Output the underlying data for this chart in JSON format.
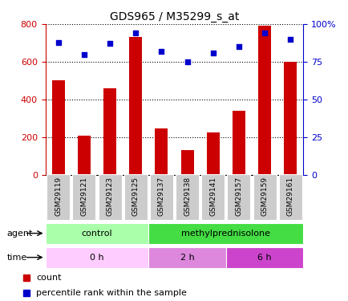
{
  "title": "GDS965 / M35299_s_at",
  "samples": [
    "GSM29119",
    "GSM29121",
    "GSM29123",
    "GSM29125",
    "GSM29137",
    "GSM29138",
    "GSM29141",
    "GSM29157",
    "GSM29159",
    "GSM29161"
  ],
  "counts": [
    500,
    205,
    460,
    730,
    245,
    130,
    225,
    340,
    790,
    600
  ],
  "percentiles": [
    88,
    80,
    87,
    94,
    82,
    75,
    81,
    85,
    94,
    90
  ],
  "ylim_left": [
    0,
    800
  ],
  "ylim_right": [
    0,
    100
  ],
  "yticks_left": [
    0,
    200,
    400,
    600,
    800
  ],
  "yticks_right": [
    0,
    25,
    50,
    75,
    100
  ],
  "bar_color": "#cc0000",
  "dot_color": "#0000cc",
  "agent_labels": [
    {
      "label": "control",
      "start": 0,
      "end": 4,
      "color": "#aaffaa"
    },
    {
      "label": "methylprednisolone",
      "start": 4,
      "end": 10,
      "color": "#44dd44"
    }
  ],
  "time_labels": [
    {
      "label": "0 h",
      "start": 0,
      "end": 4,
      "color": "#ffccff"
    },
    {
      "label": "2 h",
      "start": 4,
      "end": 7,
      "color": "#dd88dd"
    },
    {
      "label": "6 h",
      "start": 7,
      "end": 10,
      "color": "#cc44cc"
    }
  ],
  "legend_count_color": "#cc0000",
  "legend_dot_color": "#0000cc",
  "left_tick_color": "#cc0000",
  "right_tick_color": "#0000cc",
  "sample_box_color": "#cccccc"
}
